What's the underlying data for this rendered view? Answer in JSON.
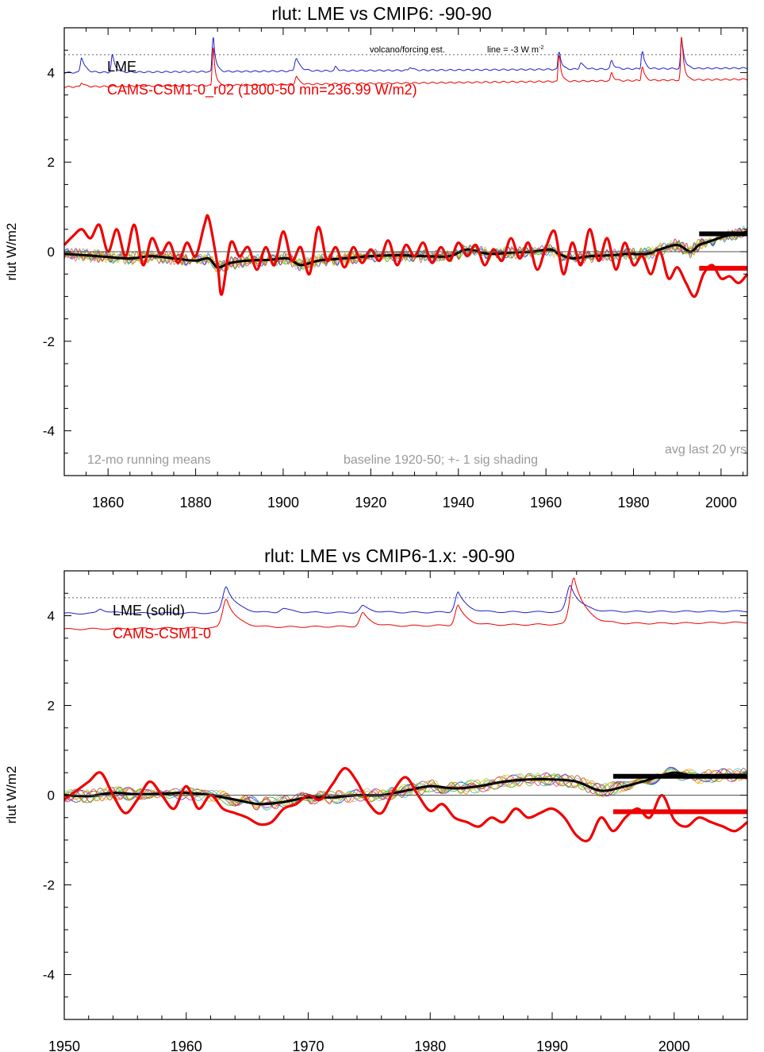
{
  "chart_data": [
    {
      "type": "line",
      "title": "rlut: LME vs CMIP6: -90-90",
      "ylabel": "rlut W/m2",
      "xlabel": "",
      "xlim": [
        1850,
        2006
      ],
      "ylim": [
        -5,
        5
      ],
      "x_ticks": [
        1860,
        1880,
        1900,
        1920,
        1940,
        1960,
        1980,
        2000
      ],
      "y_ticks": [
        -4,
        -2,
        0,
        2,
        4
      ],
      "grid": false,
      "legend_location": "top-left",
      "legend": [
        {
          "label": "LME",
          "color": "#000000"
        },
        {
          "label": "CAMS-CSM1-0_r02 (1800-50 mn=236.99 W/m2)",
          "color": "#ee0000"
        }
      ],
      "annotations": {
        "volcano_note": "volcano/forcing est.",
        "line_note": "line = -3 W m",
        "line_note_sup": "-2",
        "running_mean": "12-mo running means",
        "baseline": "baseline 1920-50; +- 1 sig shading",
        "avg_last": "avg last 20 yrs"
      },
      "reference_line_y": 4.4,
      "forcing_lme": {
        "color": "#1f1fcc",
        "base": 4.0,
        "base_end": 4.1,
        "peaks": [
          [
            1854,
            0.35,
            0.6
          ],
          [
            1861,
            0.4,
            0.5
          ],
          [
            1884,
            0.85,
            0.4
          ],
          [
            1903,
            0.3,
            0.7
          ],
          [
            1912,
            0.1,
            0.4
          ],
          [
            1929,
            0.08,
            0.5
          ],
          [
            1963,
            0.45,
            0.4
          ],
          [
            1968,
            0.15,
            0.6
          ],
          [
            1975,
            0.2,
            0.5
          ],
          [
            1982,
            0.45,
            0.4
          ],
          [
            1991,
            0.7,
            0.45
          ]
        ]
      },
      "forcing_cams": {
        "color": "#ee0000",
        "base": 3.68,
        "base_end": 3.85,
        "peaks": [
          [
            1854,
            0.1,
            0.5
          ],
          [
            1884,
            0.95,
            0.35
          ],
          [
            1903,
            0.2,
            0.5
          ],
          [
            1963,
            0.7,
            0.35
          ],
          [
            1975,
            0.2,
            0.4
          ],
          [
            1982,
            0.35,
            0.4
          ],
          [
            1991,
            1.0,
            0.4
          ]
        ]
      },
      "series": [
        {
          "name": "LME",
          "color": "#000000",
          "x": [
            1850,
            1855,
            1860,
            1865,
            1870,
            1875,
            1880,
            1883,
            1885,
            1888,
            1892,
            1897,
            1901,
            1904,
            1908,
            1914,
            1920,
            1926,
            1932,
            1938,
            1942,
            1947,
            1952,
            1957,
            1961,
            1963,
            1966,
            1970,
            1975,
            1979,
            1983,
            1986,
            1990,
            1993,
            1995,
            1998,
            2001,
            2004,
            2006
          ],
          "y": [
            -0.05,
            -0.08,
            -0.12,
            -0.15,
            -0.1,
            -0.15,
            -0.2,
            -0.15,
            -0.35,
            -0.25,
            -0.2,
            -0.18,
            -0.15,
            -0.3,
            -0.2,
            -0.15,
            -0.1,
            -0.08,
            -0.1,
            -0.1,
            0.05,
            -0.05,
            -0.02,
            0.0,
            0.05,
            -0.05,
            -0.15,
            -0.1,
            -0.08,
            -0.05,
            -0.05,
            0.05,
            0.15,
            0.0,
            0.15,
            0.25,
            0.35,
            0.4,
            0.45
          ]
        },
        {
          "name": "CAMS-CSM1-0_r02",
          "color": "#ee0000",
          "x": [
            1850,
            1852,
            1854,
            1856,
            1858,
            1860,
            1862,
            1864,
            1866,
            1868,
            1870,
            1872,
            1874,
            1876,
            1878,
            1880,
            1882,
            1883,
            1885,
            1886,
            1888,
            1890,
            1892,
            1894,
            1896,
            1898,
            1900,
            1902,
            1904,
            1906,
            1908,
            1910,
            1912,
            1914,
            1916,
            1918,
            1920,
            1922,
            1924,
            1926,
            1928,
            1930,
            1932,
            1934,
            1936,
            1938,
            1940,
            1942,
            1944,
            1946,
            1948,
            1950,
            1952,
            1954,
            1956,
            1958,
            1960,
            1962,
            1964,
            1966,
            1968,
            1970,
            1972,
            1974,
            1976,
            1978,
            1980,
            1982,
            1984,
            1986,
            1988,
            1990,
            1992,
            1994,
            1996,
            1998,
            2000,
            2002,
            2004,
            2006
          ],
          "y": [
            0.15,
            0.35,
            0.5,
            0.3,
            0.6,
            0.0,
            0.5,
            -0.1,
            0.6,
            -0.3,
            0.3,
            -0.05,
            0.2,
            -0.25,
            0.2,
            -0.1,
            0.6,
            0.75,
            -0.3,
            -0.95,
            0.2,
            -0.1,
            0.1,
            -0.4,
            0.1,
            -0.3,
            0.45,
            -0.2,
            0.1,
            -0.5,
            0.55,
            -0.2,
            0.1,
            -0.35,
            0.1,
            -0.25,
            0.05,
            -0.2,
            0.25,
            -0.3,
            0.15,
            -0.1,
            0.2,
            -0.25,
            0.1,
            -0.2,
            0.2,
            -0.1,
            0.15,
            -0.3,
            0.05,
            -0.2,
            0.3,
            -0.15,
            0.2,
            -0.4,
            0.1,
            0.45,
            -0.5,
            0.2,
            -0.3,
            0.5,
            -0.2,
            0.3,
            -0.4,
            0.2,
            -0.3,
            -0.1,
            -0.5,
            0.0,
            -0.6,
            -0.35,
            -0.7,
            -1.0,
            -0.5,
            -0.3,
            -0.6,
            -0.55,
            -0.7,
            -0.5
          ]
        }
      ],
      "avg_lines": [
        {
          "x": [
            1995,
            2006
          ],
          "y": 0.4,
          "color": "#000000"
        },
        {
          "x": [
            1995,
            2006
          ],
          "y": -0.37,
          "color": "#ee0000"
        }
      ]
    },
    {
      "type": "line",
      "title": "rlut: LME vs CMIP6-1.x: -90-90",
      "ylabel": "rlut W/m2",
      "xlabel": "",
      "xlim": [
        1950,
        2006
      ],
      "ylim": [
        -5,
        5
      ],
      "x_ticks": [
        1950,
        1960,
        1970,
        1980,
        1990,
        2000
      ],
      "y_ticks": [
        -4,
        -2,
        0,
        2,
        4
      ],
      "grid": false,
      "legend_location": "top-left",
      "legend": [
        {
          "label": "LME (solid)",
          "color": "#000000"
        },
        {
          "label": "CAMS-CSM1-0",
          "color": "#ee0000"
        }
      ],
      "reference_line_y": 4.4,
      "forcing_lme": {
        "color": "#1f1fcc",
        "base": 4.05,
        "base_end": 4.1,
        "peaks": [
          [
            1953,
            0.1,
            0.5
          ],
          [
            1963.3,
            0.6,
            0.6
          ],
          [
            1968,
            0.1,
            0.6
          ],
          [
            1974.5,
            0.15,
            0.5
          ],
          [
            1982.3,
            0.45,
            0.5
          ],
          [
            1991.5,
            0.6,
            0.6
          ]
        ]
      },
      "forcing_cams": {
        "color": "#ee0000",
        "base": 3.7,
        "base_end": 3.85,
        "peaks": [
          [
            1963.3,
            0.65,
            0.6
          ],
          [
            1974.5,
            0.3,
            0.5
          ],
          [
            1982.3,
            0.45,
            0.5
          ],
          [
            1991.8,
            1.05,
            0.65
          ]
        ]
      },
      "series": [
        {
          "name": "LME (solid)",
          "color": "#000000",
          "x": [
            1950,
            1952,
            1954,
            1956,
            1958,
            1960,
            1962,
            1964,
            1966,
            1968,
            1970,
            1972,
            1974,
            1976,
            1978,
            1980,
            1982,
            1984,
            1986,
            1988,
            1990,
            1992,
            1994,
            1996,
            1998,
            2000,
            2002,
            2004,
            2006
          ],
          "y": [
            0.0,
            -0.02,
            0.05,
            0.02,
            0.03,
            0.05,
            0.0,
            -0.1,
            -0.2,
            -0.15,
            -0.05,
            -0.05,
            0.0,
            0.0,
            0.1,
            0.2,
            0.15,
            0.2,
            0.3,
            0.35,
            0.35,
            0.3,
            0.1,
            0.2,
            0.35,
            0.5,
            0.4,
            0.45,
            0.45
          ]
        },
        {
          "name": "CAMS-CSM1-0",
          "color": "#ee0000",
          "x": [
            1950,
            1951,
            1952,
            1953,
            1954,
            1955,
            1956,
            1957,
            1958,
            1959,
            1960,
            1961,
            1962,
            1963,
            1964,
            1965,
            1966,
            1967,
            1968,
            1969,
            1970,
            1971,
            1972,
            1973,
            1974,
            1975,
            1976,
            1977,
            1978,
            1979,
            1980,
            1981,
            1982,
            1983,
            1984,
            1985,
            1986,
            1987,
            1988,
            1989,
            1990,
            1991,
            1992,
            1993,
            1994,
            1995,
            1996,
            1997,
            1998,
            1999,
            2000,
            2001,
            2002,
            2003,
            2004,
            2005,
            2006
          ],
          "y": [
            -0.1,
            0.1,
            0.3,
            0.5,
            0.0,
            -0.4,
            -0.1,
            0.3,
            0.0,
            -0.3,
            0.2,
            -0.3,
            0.0,
            -0.3,
            -0.4,
            -0.5,
            -0.65,
            -0.6,
            -0.3,
            -0.2,
            0.0,
            -0.1,
            0.25,
            0.6,
            0.3,
            -0.2,
            -0.4,
            0.1,
            0.4,
            0.0,
            -0.35,
            -0.2,
            -0.5,
            -0.6,
            -0.7,
            -0.5,
            -0.6,
            -0.3,
            -0.5,
            -0.4,
            -0.3,
            -0.5,
            -0.9,
            -1.0,
            -0.5,
            -0.8,
            -0.5,
            -0.3,
            -0.5,
            0.0,
            -0.55,
            -0.7,
            -0.5,
            -0.6,
            -0.7,
            -0.8,
            -0.6
          ]
        }
      ],
      "avg_lines": [
        {
          "x": [
            1995,
            2006
          ],
          "y": 0.42,
          "color": "#000000"
        },
        {
          "x": [
            1995,
            2006
          ],
          "y": -0.37,
          "color": "#ee0000"
        }
      ]
    }
  ]
}
